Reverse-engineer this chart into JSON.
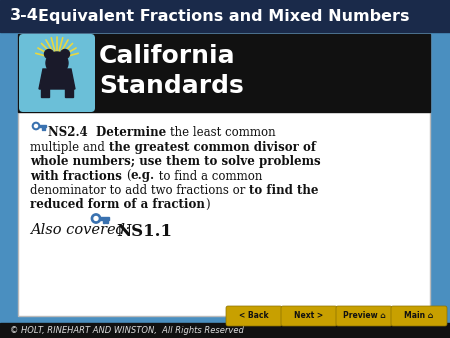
{
  "bg_color": "#4a8fc0",
  "header_bg": "#1a2a4a",
  "header_text_34": "3-4",
  "header_text_main": "Equivalent Fractions and Mixed Numbers",
  "header_text_color": "#ffffff",
  "header_fontsize": 11.5,
  "cal_banner_bg": "#111111",
  "cal_title1": "California",
  "cal_title2": "Standards",
  "cal_text_color": "#ffffff",
  "cal_fontsize": 18,
  "content_bg": "#ffffff",
  "key_color": "#3a72b0",
  "footer_text": "© HOLT, RINEHART AND WINSTON,  All Rights Reserved",
  "footer_color": "#ffffff",
  "footer_fontsize": 6,
  "btn_color": "#c8a000",
  "btn_text_color": "#111111",
  "btns": [
    "< Back",
    "Next >",
    "Preview ⌂",
    "Main ⌂"
  ],
  "bear_bg": "#6bbfd8"
}
